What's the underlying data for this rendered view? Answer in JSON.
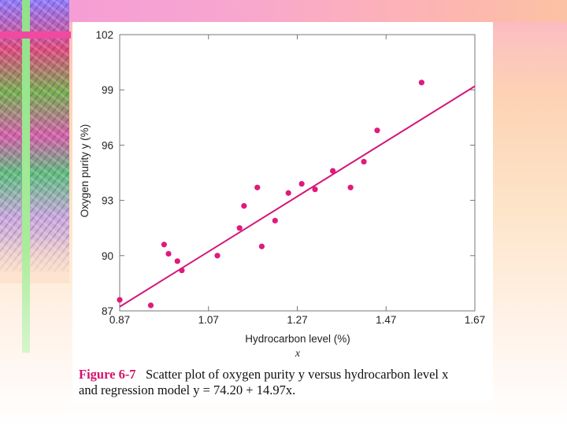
{
  "caption": {
    "figure_label": "Figure 6-7",
    "line1": "Scatter plot of oxygen purity y versus hydrocarbon level x",
    "line2": "and regression model y = 74.20 + 14.97x."
  },
  "chart_data": {
    "type": "scatter",
    "title": "",
    "xlabel": "Hydrocarbon level (%)",
    "xlabel_var": "x",
    "ylabel": "Oxygen purity y (%)",
    "xlim": [
      0.87,
      1.67
    ],
    "ylim": [
      87,
      102
    ],
    "xticks": [
      "0.87",
      "1.07",
      "1.27",
      "1.47",
      "1.67"
    ],
    "xtick_values": [
      0.87,
      1.07,
      1.27,
      1.47,
      1.67
    ],
    "yticks": [
      "87",
      "90",
      "93",
      "96",
      "99",
      "102"
    ],
    "ytick_values": [
      87,
      90,
      93,
      96,
      99,
      102
    ],
    "grid": false,
    "point_color": "#e0197d",
    "line_color": "#d4157a",
    "points": [
      {
        "x": 0.87,
        "y": 87.6
      },
      {
        "x": 0.94,
        "y": 87.3
      },
      {
        "x": 0.97,
        "y": 90.6
      },
      {
        "x": 0.98,
        "y": 90.1
      },
      {
        "x": 1.0,
        "y": 89.7
      },
      {
        "x": 1.01,
        "y": 89.2
      },
      {
        "x": 1.09,
        "y": 90.0
      },
      {
        "x": 1.14,
        "y": 91.5
      },
      {
        "x": 1.15,
        "y": 92.7
      },
      {
        "x": 1.18,
        "y": 93.7
      },
      {
        "x": 1.19,
        "y": 90.5
      },
      {
        "x": 1.22,
        "y": 91.9
      },
      {
        "x": 1.25,
        "y": 93.4
      },
      {
        "x": 1.28,
        "y": 93.9
      },
      {
        "x": 1.31,
        "y": 93.6
      },
      {
        "x": 1.35,
        "y": 94.6
      },
      {
        "x": 1.39,
        "y": 93.7
      },
      {
        "x": 1.42,
        "y": 95.1
      },
      {
        "x": 1.45,
        "y": 96.8
      },
      {
        "x": 1.55,
        "y": 99.4
      }
    ],
    "regression": {
      "intercept": 74.2,
      "slope": 14.97
    }
  }
}
